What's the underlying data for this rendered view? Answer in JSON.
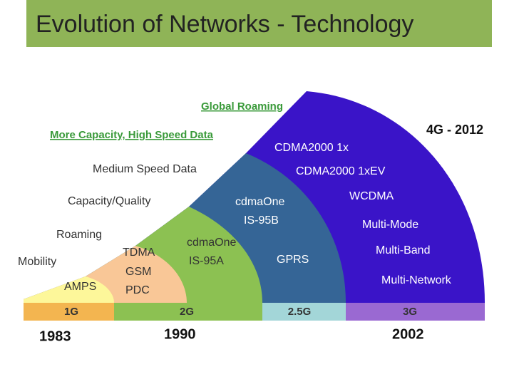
{
  "header": {
    "title": "Evolution of Networks - Technology"
  },
  "left_labels": [
    "Global Roaming",
    "More Capacity, High Speed Data",
    "Medium Speed Data",
    "Capacity/Quality",
    "Roaming",
    "Mobility"
  ],
  "regions": [
    {
      "lines": [
        "AMPS"
      ]
    },
    {
      "lines": [
        "TDMA",
        "GSM",
        "PDC"
      ]
    },
    {
      "lines": [
        "cdmaOne",
        "IS-95A"
      ]
    },
    {
      "lines": [
        "cdmaOne",
        "IS-95B",
        "GPRS"
      ]
    },
    {
      "lines": [
        "CDMA2000 1x",
        "CDMA2000 1xEV",
        "WCDMA",
        "Multi-Mode",
        "Multi-Band",
        "Multi-Network"
      ]
    }
  ],
  "bands": [
    "1G",
    "2G",
    "2.5G",
    "3G"
  ],
  "years": [
    "1983",
    "1990",
    "2002"
  ],
  "note": "4G - 2012"
}
